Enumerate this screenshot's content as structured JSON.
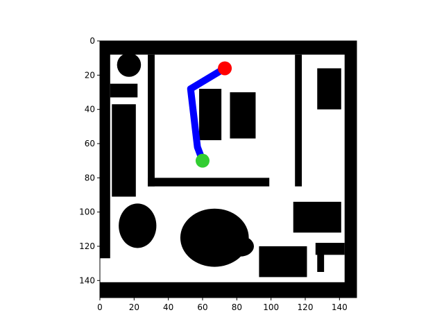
{
  "chart_data": {
    "type": "occupancy-grid-path",
    "title": "",
    "xlabel": "",
    "ylabel": "",
    "xlim": [
      0,
      150
    ],
    "ylim": [
      150,
      0
    ],
    "x_ticks": [
      0,
      20,
      40,
      60,
      80,
      100,
      120,
      140
    ],
    "y_ticks": [
      0,
      20,
      40,
      60,
      80,
      100,
      120,
      140
    ],
    "grid": false,
    "legend": "none",
    "colors": {
      "obstacle": "#000000",
      "free": "#ffffff",
      "path": "#0000ff",
      "start_marker": "#32cd32",
      "goal_marker": "#ff0000"
    },
    "path": [
      [
        60,
        70
      ],
      [
        57,
        62
      ],
      [
        55,
        45
      ],
      [
        53,
        28
      ],
      [
        73,
        16
      ]
    ],
    "start": [
      60,
      70
    ],
    "goal": [
      73,
      16
    ],
    "obstacles_rect": [
      [
        0,
        0,
        150,
        8
      ],
      [
        0,
        141,
        150,
        150
      ],
      [
        0,
        0,
        6,
        127
      ],
      [
        143,
        0,
        150,
        150
      ],
      [
        6,
        25,
        22,
        33
      ],
      [
        7,
        37,
        21,
        91
      ],
      [
        28,
        8,
        32,
        85
      ],
      [
        28,
        80,
        99,
        85
      ],
      [
        114,
        8,
        118,
        85
      ],
      [
        58,
        28,
        71,
        58
      ],
      [
        76,
        30,
        91,
        57
      ],
      [
        127,
        16,
        141,
        40
      ],
      [
        113,
        94,
        141,
        112
      ],
      [
        93,
        120,
        121,
        138
      ],
      [
        126,
        118,
        143,
        125
      ],
      [
        127,
        123,
        131,
        135
      ]
    ],
    "obstacles_blob": [
      [
        17,
        14,
        7,
        7
      ],
      [
        22,
        108,
        11,
        13
      ],
      [
        67,
        115,
        20,
        17
      ],
      [
        82,
        120,
        8,
        6
      ]
    ]
  }
}
